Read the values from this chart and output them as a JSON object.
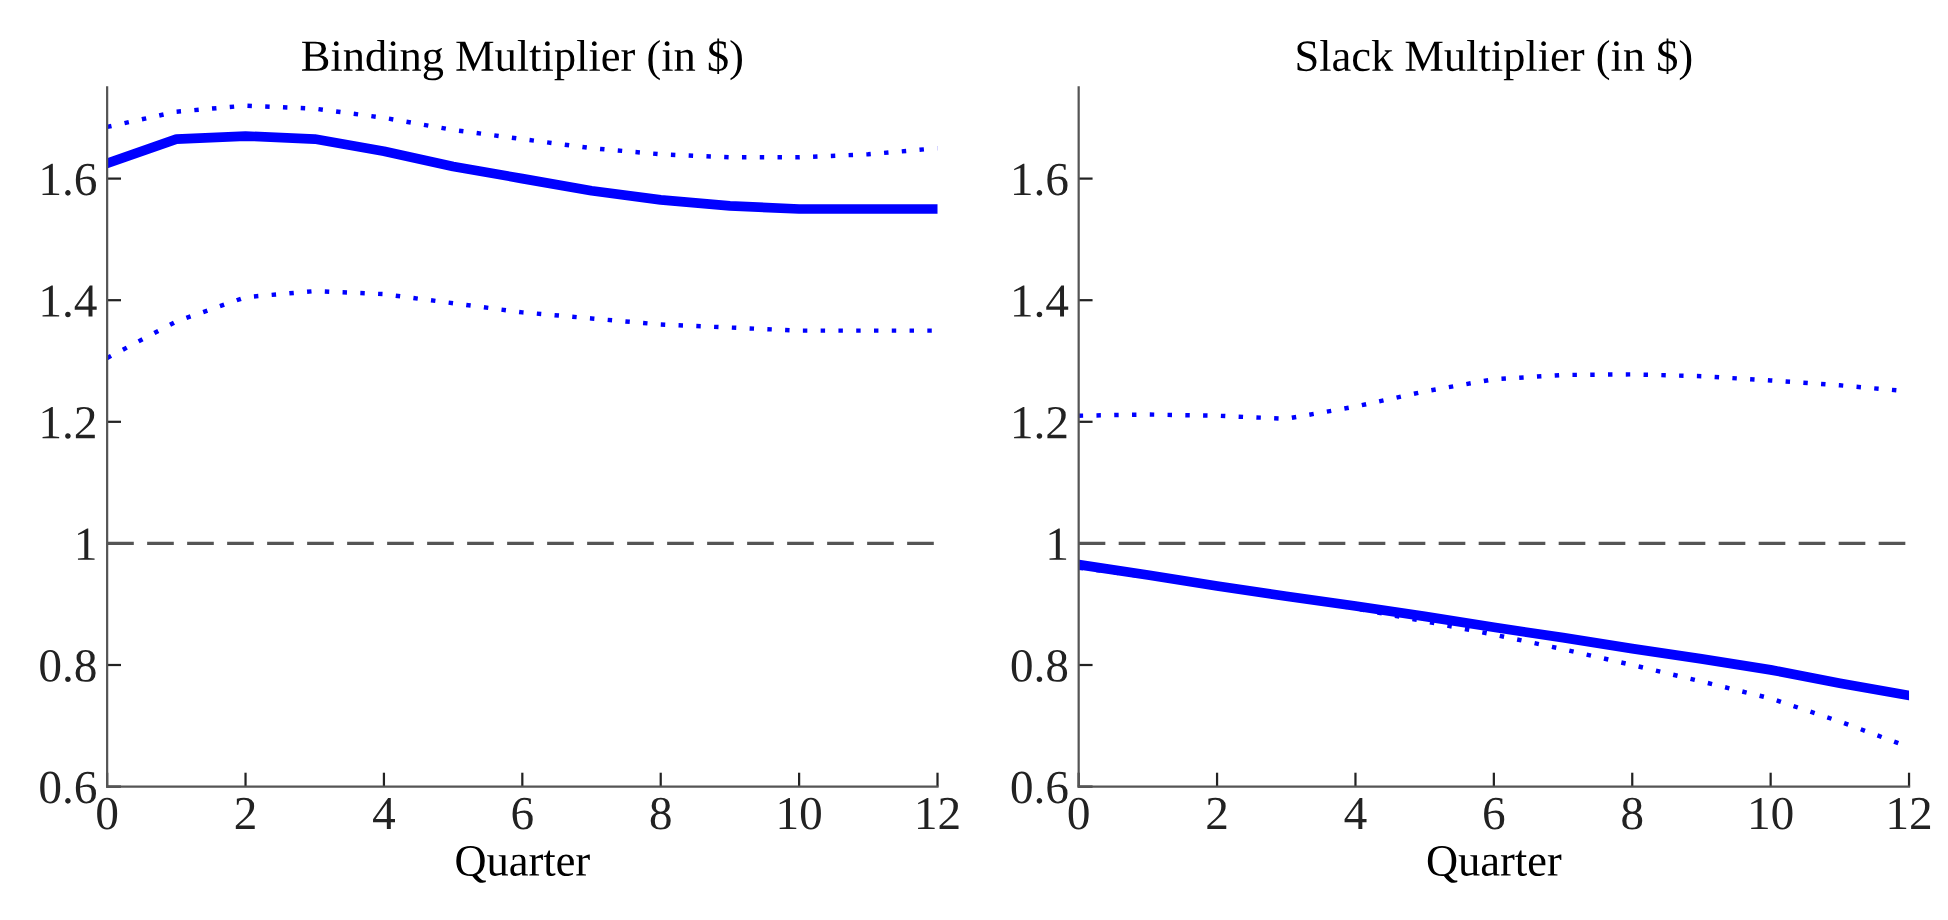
{
  "chart_data": [
    {
      "type": "line",
      "title": "Binding Multiplier (in $)",
      "xlabel": "Quarter",
      "x": [
        0,
        1,
        2,
        3,
        4,
        5,
        6,
        7,
        8,
        9,
        10,
        11,
        12
      ],
      "xlim": [
        0,
        12
      ],
      "xticks": [
        0,
        2,
        4,
        6,
        8,
        10,
        12
      ],
      "ylim": [
        0.6,
        1.75
      ],
      "yticks": [
        0.6,
        0.8,
        1,
        1.2,
        1.4,
        1.6
      ],
      "grid": false,
      "legend": false,
      "series": [
        {
          "color": "#0000ff",
          "line_style": "solid",
          "values": [
            1.625,
            1.665,
            1.67,
            1.665,
            1.645,
            1.62,
            1.6,
            1.58,
            1.565,
            1.555,
            1.55,
            1.55,
            1.55
          ]
        },
        {
          "color": "#0000ff",
          "line_style": "dotted",
          "values": [
            1.685,
            1.71,
            1.72,
            1.715,
            1.7,
            1.68,
            1.665,
            1.65,
            1.64,
            1.635,
            1.635,
            1.64,
            1.65
          ]
        },
        {
          "color": "#0000ff",
          "line_style": "dotted",
          "values": [
            1.305,
            1.365,
            1.405,
            1.415,
            1.41,
            1.395,
            1.38,
            1.37,
            1.36,
            1.355,
            1.35,
            1.35,
            1.35
          ]
        }
      ],
      "ref_lines": [
        {
          "axis": "y",
          "value": 1,
          "color": "#555555",
          "line_style": "dashed"
        }
      ]
    },
    {
      "type": "line",
      "title": "Slack Multiplier (in $)",
      "xlabel": "Quarter",
      "x": [
        0,
        1,
        2,
        3,
        4,
        5,
        6,
        7,
        8,
        9,
        10,
        11,
        12
      ],
      "xlim": [
        0,
        12
      ],
      "xticks": [
        0,
        2,
        4,
        6,
        8,
        10,
        12
      ],
      "ylim": [
        0.6,
        1.75
      ],
      "yticks": [
        0.6,
        0.8,
        1,
        1.2,
        1.4,
        1.6
      ],
      "grid": false,
      "legend": false,
      "series": [
        {
          "color": "#0000ff",
          "line_style": "solid",
          "values": [
            0.965,
            0.948,
            0.93,
            0.913,
            0.897,
            0.88,
            0.862,
            0.845,
            0.827,
            0.81,
            0.792,
            0.77,
            0.75
          ]
        },
        {
          "color": "#0000ff",
          "line_style": "dotted",
          "values": [
            1.21,
            1.212,
            1.21,
            1.205,
            1.225,
            1.25,
            1.27,
            1.277,
            1.278,
            1.275,
            1.268,
            1.26,
            1.25
          ]
        },
        {
          "color": "#0000ff",
          "line_style": "dotted",
          "values": [
            0.96,
            0.945,
            0.93,
            0.912,
            0.893,
            0.872,
            0.85,
            0.826,
            0.8,
            0.773,
            0.745,
            0.707,
            0.665
          ]
        }
      ],
      "ref_lines": [
        {
          "axis": "y",
          "value": 1,
          "color": "#555555",
          "line_style": "dashed"
        }
      ]
    }
  ]
}
